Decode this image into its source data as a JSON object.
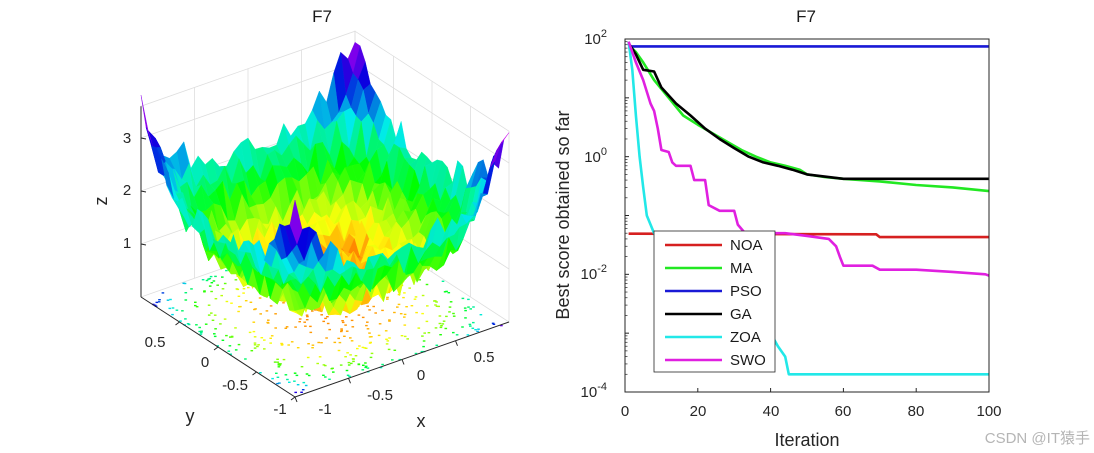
{
  "watermark": "CSDN @IT猿手",
  "chart_data": [
    {
      "type": "surface",
      "title": "F7",
      "xlabel": "x",
      "ylabel": "y",
      "zlabel": "z",
      "x_ticks": [
        "-1",
        "-0.5",
        "0",
        "0.5"
      ],
      "y_ticks": [
        "-1",
        "-0.5",
        "0",
        "0.5"
      ],
      "z_ticks": [
        "1",
        "2",
        "3"
      ],
      "xlim": [
        -1,
        1
      ],
      "ylim": [
        -1,
        1
      ],
      "zlim": [
        0,
        3.6
      ],
      "colormap": "hsv",
      "contour_floor": true,
      "grid": true
    },
    {
      "type": "line",
      "title": "F7",
      "xlabel": "Iteration",
      "ylabel": "Best score obtained so far",
      "xlim": [
        0,
        100
      ],
      "ylim": [
        0.0001,
        100
      ],
      "yscale": "log",
      "x_ticks": [
        "0",
        "20",
        "40",
        "60",
        "80",
        "100"
      ],
      "y_ticks": [
        {
          "base": "10",
          "exp": "-4",
          "value": 0.0001
        },
        {
          "base": "10",
          "exp": "-2",
          "value": 0.01
        },
        {
          "base": "10",
          "exp": "0",
          "value": 1
        },
        {
          "base": "10",
          "exp": "2",
          "value": 100
        }
      ],
      "legend_position": "lower-left",
      "series": [
        {
          "name": "NOA",
          "color": "#d62020",
          "x": [
            1,
            69,
            70,
            100
          ],
          "y": [
            0.049,
            0.048,
            0.043,
            0.043
          ]
        },
        {
          "name": "MA",
          "color": "#22e822",
          "x": [
            1,
            3,
            5,
            8,
            12,
            16,
            20,
            24,
            28,
            32,
            36,
            40,
            44,
            48,
            50,
            55,
            60,
            70,
            80,
            90,
            100
          ],
          "y": [
            80,
            60,
            40,
            20,
            10,
            5,
            3.5,
            2.5,
            1.8,
            1.3,
            1.0,
            0.8,
            0.7,
            0.6,
            0.5,
            0.45,
            0.42,
            0.38,
            0.33,
            0.3,
            0.26
          ]
        },
        {
          "name": "PSO",
          "color": "#1a1ad6",
          "x": [
            1,
            100
          ],
          "y": [
            75,
            75
          ]
        },
        {
          "name": "GA",
          "color": "#000000",
          "x": [
            1,
            3,
            5,
            8,
            10,
            14,
            18,
            22,
            26,
            30,
            34,
            38,
            42,
            46,
            50,
            56,
            60,
            100
          ],
          "y": [
            85,
            55,
            30,
            28,
            15,
            8,
            5,
            3,
            2,
            1.4,
            1.0,
            0.8,
            0.7,
            0.6,
            0.5,
            0.45,
            0.42,
            0.42
          ]
        },
        {
          "name": "ZOA",
          "color": "#22e8e8",
          "x": [
            1,
            2,
            3,
            4,
            5,
            6,
            8,
            10,
            14,
            18,
            22,
            26,
            30,
            35,
            40,
            42,
            44,
            45,
            100
          ],
          "y": [
            90,
            30,
            5,
            1,
            0.3,
            0.1,
            0.05,
            0.03,
            0.02,
            0.015,
            0.01,
            0.007,
            0.004,
            0.002,
            0.001,
            0.0006,
            0.0004,
            0.0002,
            0.0002
          ]
        },
        {
          "name": "SWO",
          "color": "#e020e0",
          "x": [
            1,
            3,
            5,
            7,
            8,
            9,
            10,
            12,
            13,
            14,
            18,
            19,
            20,
            22,
            23,
            26,
            30,
            31,
            33,
            40,
            44,
            50,
            56,
            58,
            59,
            60,
            68,
            70,
            80,
            90,
            99,
            100
          ],
          "y": [
            90,
            40,
            20,
            8,
            6,
            3,
            1.3,
            1.2,
            0.8,
            0.7,
            0.7,
            0.4,
            0.4,
            0.4,
            0.15,
            0.12,
            0.12,
            0.07,
            0.05,
            0.05,
            0.05,
            0.045,
            0.04,
            0.03,
            0.02,
            0.014,
            0.014,
            0.012,
            0.012,
            0.011,
            0.01,
            0.0095
          ]
        }
      ]
    }
  ]
}
